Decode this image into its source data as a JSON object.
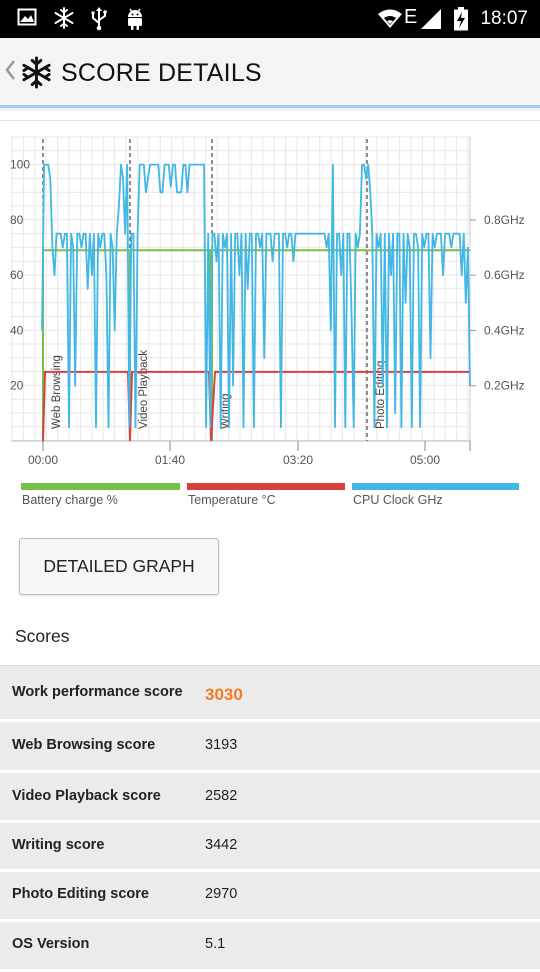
{
  "status_bar": {
    "time": "18:07",
    "network": "E",
    "icons": [
      "image-icon",
      "snowflake-icon",
      "usb-icon",
      "android-icon",
      "wifi-icon",
      "signal-icon",
      "battery-charging-icon"
    ]
  },
  "header": {
    "title": "SCORE DETAILS",
    "logo_icon": "snowflake-icon",
    "back_icon": "chevron-left-icon"
  },
  "chart_data": {
    "type": "line",
    "x_ticks": [
      "00:00",
      "01:40",
      "03:20",
      "05:00"
    ],
    "y_left_ticks": [
      "100",
      "80",
      "60",
      "40",
      "20"
    ],
    "y_right_ticks": [
      "0.8GHz",
      "0.6GHz",
      "0.4GHz",
      "0.2GHz"
    ],
    "phase_labels": [
      "Web Browsing",
      "Video Playback",
      "Writing",
      "Photo Editing"
    ],
    "legend": [
      {
        "name": "Battery charge %",
        "color": "#78c043"
      },
      {
        "name": "Temperature °C",
        "color": "#d74141"
      },
      {
        "name": "CPU Clock GHz",
        "color": "#42b6e4"
      }
    ],
    "grid": true,
    "battery_series": {
      "name": "Battery charge %",
      "value": 69
    },
    "temperature_series": {
      "name": "Temperature °C",
      "value": 25
    },
    "cpu_series": {
      "name": "CPU Clock GHz",
      "max_ghz": 1.0,
      "levels_ghz": [
        1.0,
        0.75,
        0.7,
        0.6,
        0.5,
        0.4,
        0.3,
        0.2,
        0.05
      ]
    }
  },
  "detailed_graph_button": "DETAILED GRAPH",
  "scores": {
    "heading": "Scores",
    "rows": [
      {
        "label": "Work performance score",
        "value": "3030"
      },
      {
        "label": "Web Browsing score",
        "value": "3193"
      },
      {
        "label": "Video Playback score",
        "value": "2582"
      },
      {
        "label": "Writing score",
        "value": "3442"
      },
      {
        "label": "Photo Editing score",
        "value": "2970"
      },
      {
        "label": "OS Version",
        "value": "5.1"
      }
    ]
  },
  "colors": {
    "accent": "#f37b21",
    "header_underline": "#9fd3ec",
    "battery": "#78c043",
    "temperature": "#d74141",
    "cpu": "#42b6e4"
  }
}
